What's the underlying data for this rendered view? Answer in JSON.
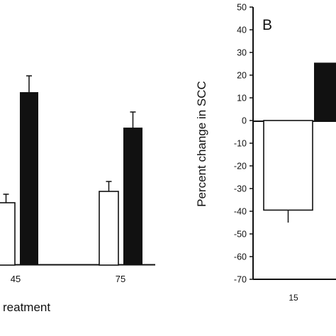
{
  "chart_data": [
    {
      "type": "bar",
      "panel_label": "",
      "xlabel": "reatment",
      "ylabel": "",
      "categories": [
        "45",
        "75"
      ],
      "series": [
        {
          "fill": "#ffffff",
          "values": [
            null,
            null
          ],
          "errors": [
            null,
            null
          ]
        },
        {
          "fill": "#111111",
          "values": [
            null,
            null
          ],
          "errors": [
            null,
            null
          ]
        }
      ]
    },
    {
      "type": "bar",
      "panel_label": "B",
      "ylabel": "Percent change in SCC",
      "xlabel": "",
      "ylim": [
        -70,
        50
      ],
      "yticks": [
        "50",
        "40",
        "30",
        "20",
        "10",
        "0",
        "-10",
        "-20",
        "-30",
        "-40",
        "-50",
        "-60",
        "-70"
      ],
      "categories": [
        "15"
      ],
      "series": [
        {
          "fill": "#ffffff",
          "values": [
            -39.5
          ],
          "errors": [
            5.5
          ]
        },
        {
          "fill": "#111111",
          "values": [
            25.5
          ],
          "errors": [
            null
          ]
        }
      ]
    }
  ]
}
